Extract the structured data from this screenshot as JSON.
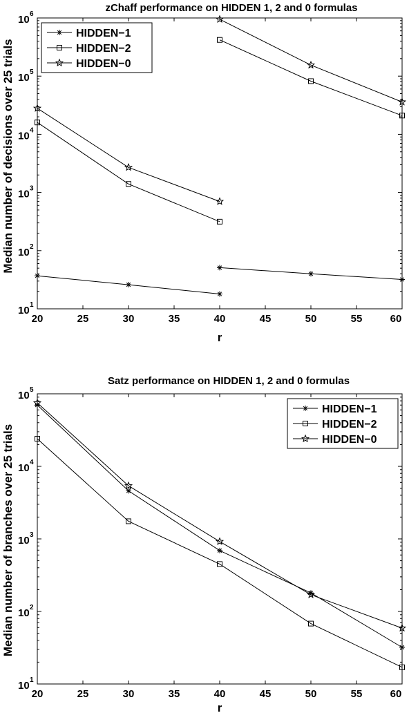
{
  "chart_data": [
    {
      "type": "line",
      "title": "zChaff performance on HIDDEN 1, 2 and 0 formulas",
      "xlabel": "r",
      "ylabel": "Median number of decisions over 25 trials",
      "yscale": "log",
      "xlim": [
        20,
        60
      ],
      "ylim": [
        10,
        1000000
      ],
      "xticks": [
        "20",
        "25",
        "30",
        "35",
        "40",
        "45",
        "50",
        "55",
        "60"
      ],
      "ytick_base": "10",
      "ytick_exponents": [
        "1",
        "2",
        "3",
        "4",
        "5",
        "6"
      ],
      "legend_position": "top-left",
      "grid": false,
      "series": [
        {
          "name": "HIDDEN−1",
          "marker": "asterisk",
          "segments": [
            {
              "x": [
                20,
                30,
                40
              ],
              "y": [
                37,
                26,
                18
              ]
            },
            {
              "x": [
                40,
                50,
                60
              ],
              "y": [
                51,
                40,
                32
              ]
            }
          ]
        },
        {
          "name": "HIDDEN−2",
          "marker": "square",
          "segments": [
            {
              "x": [
                20,
                30,
                40
              ],
              "y": [
                16000,
                1400,
                315
              ]
            },
            {
              "x": [
                40,
                50,
                60
              ],
              "y": [
                420000,
                82000,
                21000
              ]
            }
          ]
        },
        {
          "name": "HIDDEN−0",
          "marker": "star",
          "segments": [
            {
              "x": [
                20,
                30,
                40
              ],
              "y": [
                28000,
                2700,
                700
              ]
            },
            {
              "x": [
                40,
                50,
                60
              ],
              "y": [
                950000,
                155000,
                36000
              ]
            }
          ]
        }
      ]
    },
    {
      "type": "line",
      "title": "Satz performance on HIDDEN 1, 2 and 0 formulas",
      "xlabel": "r",
      "ylabel": "Median number of branches over 25 trials",
      "yscale": "log",
      "xlim": [
        20,
        60
      ],
      "ylim": [
        10,
        100000
      ],
      "xticks": [
        "20",
        "25",
        "30",
        "35",
        "40",
        "45",
        "50",
        "55",
        "60"
      ],
      "ytick_base": "10",
      "ytick_exponents": [
        "1",
        "2",
        "3",
        "4",
        "5"
      ],
      "legend_position": "top-right",
      "grid": false,
      "series": [
        {
          "name": "HIDDEN−1",
          "marker": "asterisk",
          "segments": [
            {
              "x": [
                20,
                30,
                40,
                50,
                60
              ],
              "y": [
                70000,
                4600,
                690,
                180,
                32
              ]
            }
          ]
        },
        {
          "name": "HIDDEN−2",
          "marker": "square",
          "segments": [
            {
              "x": [
                20,
                30,
                40,
                50,
                60
              ],
              "y": [
                24000,
                1750,
                450,
                68,
                17
              ]
            }
          ]
        },
        {
          "name": "HIDDEN−0",
          "marker": "star",
          "segments": [
            {
              "x": [
                20,
                30,
                40,
                50,
                60
              ],
              "y": [
                75000,
                5400,
                920,
                170,
                59
              ]
            }
          ]
        }
      ]
    }
  ]
}
